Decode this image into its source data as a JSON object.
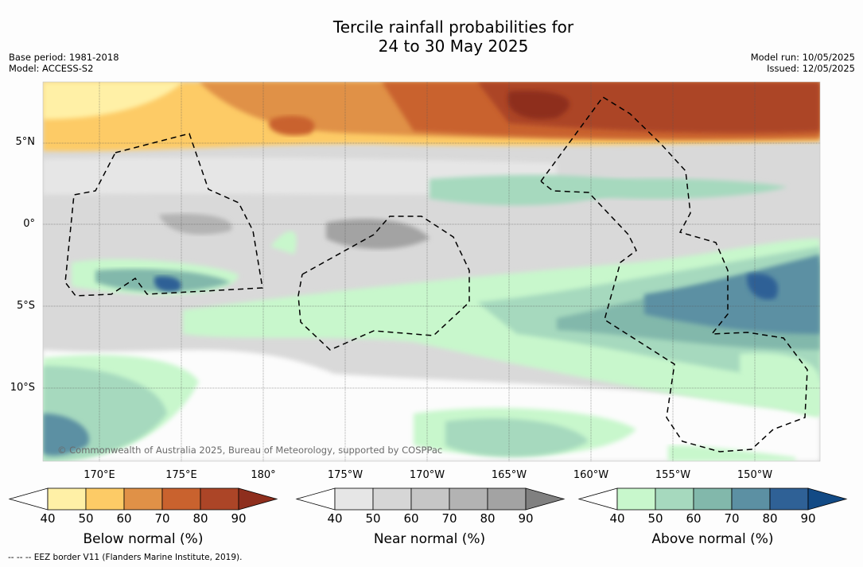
{
  "title_line1": "Tercile rainfall probabilities for",
  "title_line2": "24 to 30 May 2025",
  "base_period": "Base period: 1981-2018",
  "model": "Model: ACCESS-S2",
  "model_run": "Model run: 10/05/2025",
  "issued": "Issued: 12/05/2025",
  "copyright": "© Commonwealth of Australia 2025, Bureau of Meteorology, supported by COSPPac",
  "lat_labels": [
    "5°N",
    "0°",
    "5°S",
    "10°S"
  ],
  "lon_labels": [
    "170°E",
    "175°E",
    "180°",
    "175°W",
    "170°W",
    "165°W",
    "160°W",
    "155°W",
    "150°W"
  ],
  "colorbars": [
    {
      "title": "Below normal (%)",
      "ticks": [
        "40",
        "50",
        "60",
        "70",
        "80",
        "90"
      ],
      "colors": [
        "#fff0a6",
        "#fdcb66",
        "#e09147",
        "#c9622e",
        "#ac4527",
        "#8e2e1d"
      ]
    },
    {
      "title": "Near normal (%)",
      "ticks": [
        "40",
        "50",
        "60",
        "70",
        "80",
        "90"
      ],
      "colors": [
        "#e6e6e6",
        "#d6d6d6",
        "#c6c6c6",
        "#b3b3b3",
        "#a3a3a3",
        "#808080"
      ]
    },
    {
      "title": "Above normal (%)",
      "ticks": [
        "40",
        "50",
        "60",
        "70",
        "80",
        "90"
      ],
      "colors": [
        "#c8f7cc",
        "#a6d9be",
        "#82b8ab",
        "#5c90a3",
        "#2f6196",
        "#124a85"
      ]
    }
  ],
  "legend_note": "-- -- -- EEZ border V11 (Flanders Marine Institute, 2019)."
}
